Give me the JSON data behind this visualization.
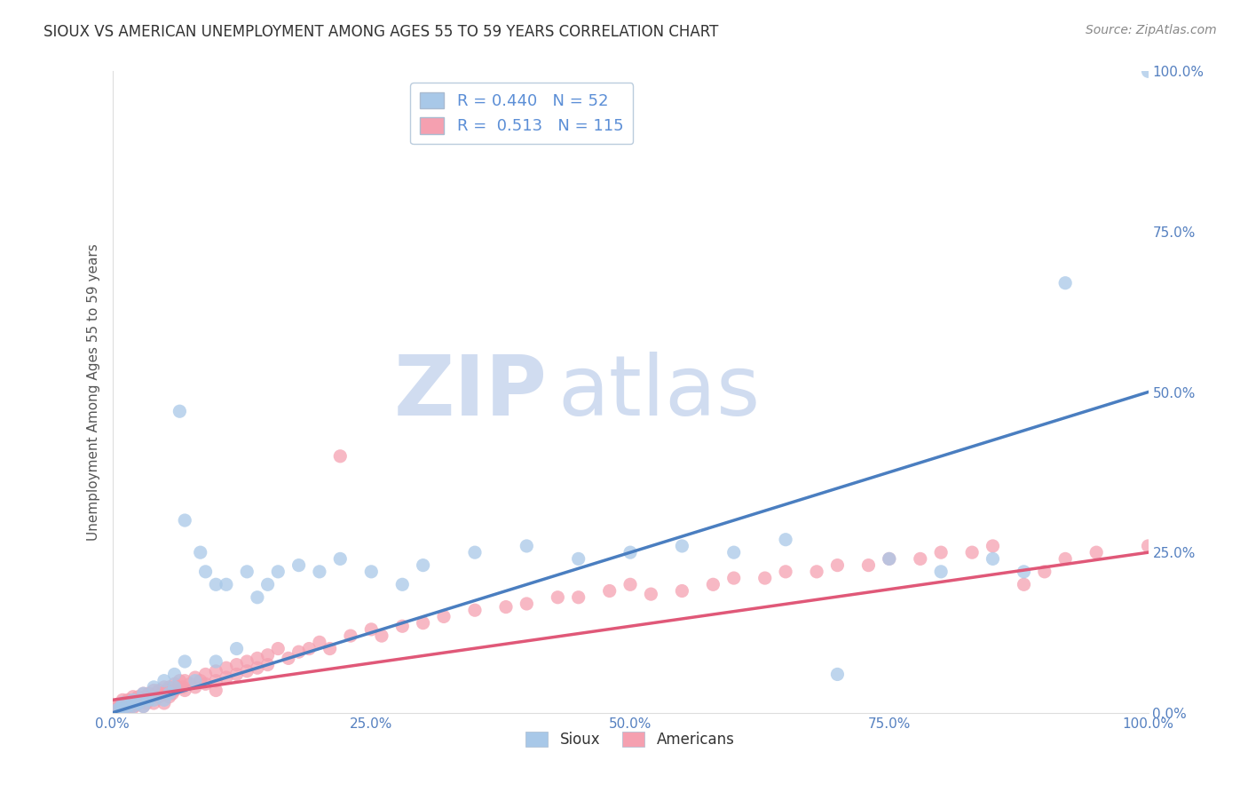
{
  "title": "SIOUX VS AMERICAN UNEMPLOYMENT AMONG AGES 55 TO 59 YEARS CORRELATION CHART",
  "source": "Source: ZipAtlas.com",
  "ylabel": "Unemployment Among Ages 55 to 59 years",
  "xlim": [
    0.0,
    1.0
  ],
  "ylim": [
    0.0,
    1.0
  ],
  "xtick_labels": [
    "0.0%",
    "25.0%",
    "50.0%",
    "75.0%",
    "100.0%"
  ],
  "xtick_vals": [
    0.0,
    0.25,
    0.5,
    0.75,
    1.0
  ],
  "right_ytick_labels": [
    "0.0%",
    "25.0%",
    "50.0%",
    "75.0%",
    "100.0%"
  ],
  "right_ytick_vals": [
    0.0,
    0.25,
    0.5,
    0.75,
    1.0
  ],
  "sioux_R": 0.44,
  "sioux_N": 52,
  "americans_R": 0.513,
  "americans_N": 115,
  "sioux_color": "#A8C8E8",
  "americans_color": "#F5A0B0",
  "sioux_line_color": "#4A7EC0",
  "americans_line_color": "#E05878",
  "background_color": "#FFFFFF",
  "grid_color": "#CCCCCC",
  "title_color": "#333333",
  "watermark_zip": "ZIP",
  "watermark_atlas": "atlas",
  "legend_text_color": "#5B8ED6",
  "sioux_trend": [
    0.0,
    0.0,
    1.0,
    0.5
  ],
  "americans_trend": [
    0.0,
    0.02,
    1.0,
    0.25
  ],
  "sioux_points": [
    [
      0.005,
      0.005
    ],
    [
      0.008,
      0.008
    ],
    [
      0.01,
      0.015
    ],
    [
      0.01,
      0.005
    ],
    [
      0.015,
      0.01
    ],
    [
      0.02,
      0.02
    ],
    [
      0.02,
      0.01
    ],
    [
      0.025,
      0.015
    ],
    [
      0.03,
      0.03
    ],
    [
      0.03,
      0.01
    ],
    [
      0.035,
      0.02
    ],
    [
      0.04,
      0.04
    ],
    [
      0.04,
      0.02
    ],
    [
      0.05,
      0.05
    ],
    [
      0.05,
      0.02
    ],
    [
      0.055,
      0.03
    ],
    [
      0.06,
      0.06
    ],
    [
      0.06,
      0.04
    ],
    [
      0.065,
      0.47
    ],
    [
      0.07,
      0.3
    ],
    [
      0.07,
      0.08
    ],
    [
      0.08,
      0.05
    ],
    [
      0.085,
      0.25
    ],
    [
      0.09,
      0.22
    ],
    [
      0.1,
      0.08
    ],
    [
      0.1,
      0.2
    ],
    [
      0.11,
      0.2
    ],
    [
      0.12,
      0.1
    ],
    [
      0.13,
      0.22
    ],
    [
      0.14,
      0.18
    ],
    [
      0.15,
      0.2
    ],
    [
      0.16,
      0.22
    ],
    [
      0.18,
      0.23
    ],
    [
      0.2,
      0.22
    ],
    [
      0.22,
      0.24
    ],
    [
      0.25,
      0.22
    ],
    [
      0.28,
      0.2
    ],
    [
      0.3,
      0.23
    ],
    [
      0.35,
      0.25
    ],
    [
      0.4,
      0.26
    ],
    [
      0.45,
      0.24
    ],
    [
      0.5,
      0.25
    ],
    [
      0.55,
      0.26
    ],
    [
      0.6,
      0.25
    ],
    [
      0.65,
      0.27
    ],
    [
      0.7,
      0.06
    ],
    [
      0.75,
      0.24
    ],
    [
      0.8,
      0.22
    ],
    [
      0.85,
      0.24
    ],
    [
      0.88,
      0.22
    ],
    [
      0.92,
      0.67
    ],
    [
      1.0,
      1.0
    ]
  ],
  "americans_points": [
    [
      0.0,
      0.0
    ],
    [
      0.002,
      0.0
    ],
    [
      0.003,
      0.005
    ],
    [
      0.004,
      0.01
    ],
    [
      0.005,
      0.005
    ],
    [
      0.006,
      0.012
    ],
    [
      0.007,
      0.008
    ],
    [
      0.008,
      0.01
    ],
    [
      0.008,
      0.003
    ],
    [
      0.009,
      0.008
    ],
    [
      0.01,
      0.02
    ],
    [
      0.01,
      0.01
    ],
    [
      0.01,
      0.005
    ],
    [
      0.012,
      0.015
    ],
    [
      0.013,
      0.01
    ],
    [
      0.014,
      0.012
    ],
    [
      0.015,
      0.02
    ],
    [
      0.016,
      0.015
    ],
    [
      0.018,
      0.01
    ],
    [
      0.019,
      0.018
    ],
    [
      0.02,
      0.025
    ],
    [
      0.02,
      0.015
    ],
    [
      0.02,
      0.008
    ],
    [
      0.022,
      0.02
    ],
    [
      0.023,
      0.012
    ],
    [
      0.025,
      0.025
    ],
    [
      0.025,
      0.015
    ],
    [
      0.027,
      0.02
    ],
    [
      0.028,
      0.018
    ],
    [
      0.03,
      0.03
    ],
    [
      0.03,
      0.02
    ],
    [
      0.03,
      0.01
    ],
    [
      0.032,
      0.025
    ],
    [
      0.033,
      0.015
    ],
    [
      0.035,
      0.03
    ],
    [
      0.035,
      0.02
    ],
    [
      0.038,
      0.025
    ],
    [
      0.04,
      0.035
    ],
    [
      0.04,
      0.025
    ],
    [
      0.04,
      0.015
    ],
    [
      0.042,
      0.03
    ],
    [
      0.045,
      0.035
    ],
    [
      0.045,
      0.025
    ],
    [
      0.048,
      0.03
    ],
    [
      0.05,
      0.04
    ],
    [
      0.05,
      0.03
    ],
    [
      0.05,
      0.015
    ],
    [
      0.052,
      0.035
    ],
    [
      0.055,
      0.04
    ],
    [
      0.055,
      0.025
    ],
    [
      0.058,
      0.03
    ],
    [
      0.06,
      0.045
    ],
    [
      0.06,
      0.035
    ],
    [
      0.063,
      0.04
    ],
    [
      0.065,
      0.05
    ],
    [
      0.068,
      0.04
    ],
    [
      0.07,
      0.05
    ],
    [
      0.07,
      0.035
    ],
    [
      0.075,
      0.045
    ],
    [
      0.08,
      0.055
    ],
    [
      0.08,
      0.04
    ],
    [
      0.085,
      0.05
    ],
    [
      0.09,
      0.06
    ],
    [
      0.09,
      0.045
    ],
    [
      0.1,
      0.065
    ],
    [
      0.1,
      0.05
    ],
    [
      0.1,
      0.035
    ],
    [
      0.11,
      0.07
    ],
    [
      0.11,
      0.055
    ],
    [
      0.12,
      0.075
    ],
    [
      0.12,
      0.06
    ],
    [
      0.13,
      0.08
    ],
    [
      0.13,
      0.065
    ],
    [
      0.14,
      0.085
    ],
    [
      0.14,
      0.07
    ],
    [
      0.15,
      0.09
    ],
    [
      0.15,
      0.075
    ],
    [
      0.16,
      0.1
    ],
    [
      0.17,
      0.085
    ],
    [
      0.18,
      0.095
    ],
    [
      0.19,
      0.1
    ],
    [
      0.2,
      0.11
    ],
    [
      0.21,
      0.1
    ],
    [
      0.22,
      0.4
    ],
    [
      0.23,
      0.12
    ],
    [
      0.25,
      0.13
    ],
    [
      0.26,
      0.12
    ],
    [
      0.28,
      0.135
    ],
    [
      0.3,
      0.14
    ],
    [
      0.32,
      0.15
    ],
    [
      0.35,
      0.16
    ],
    [
      0.38,
      0.165
    ],
    [
      0.4,
      0.17
    ],
    [
      0.43,
      0.18
    ],
    [
      0.45,
      0.18
    ],
    [
      0.48,
      0.19
    ],
    [
      0.5,
      0.2
    ],
    [
      0.52,
      0.185
    ],
    [
      0.55,
      0.19
    ],
    [
      0.58,
      0.2
    ],
    [
      0.6,
      0.21
    ],
    [
      0.63,
      0.21
    ],
    [
      0.65,
      0.22
    ],
    [
      0.68,
      0.22
    ],
    [
      0.7,
      0.23
    ],
    [
      0.73,
      0.23
    ],
    [
      0.75,
      0.24
    ],
    [
      0.78,
      0.24
    ],
    [
      0.8,
      0.25
    ],
    [
      0.83,
      0.25
    ],
    [
      0.85,
      0.26
    ],
    [
      0.88,
      0.2
    ],
    [
      0.9,
      0.22
    ],
    [
      0.92,
      0.24
    ],
    [
      0.95,
      0.25
    ],
    [
      1.0,
      0.26
    ]
  ]
}
